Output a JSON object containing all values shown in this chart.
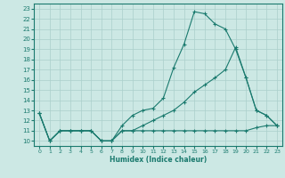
{
  "bg_color": "#cce8e4",
  "line_color": "#1a7a6e",
  "grid_color": "#aacfcb",
  "xlabel": "Humidex (Indice chaleur)",
  "xlim": [
    -0.5,
    23.5
  ],
  "ylim": [
    9.5,
    23.5
  ],
  "xticks": [
    0,
    1,
    2,
    3,
    4,
    5,
    6,
    7,
    8,
    9,
    10,
    11,
    12,
    13,
    14,
    15,
    16,
    17,
    18,
    19,
    20,
    21,
    22,
    23
  ],
  "yticks": [
    10,
    11,
    12,
    13,
    14,
    15,
    16,
    17,
    18,
    19,
    20,
    21,
    22,
    23
  ],
  "line1_x": [
    0,
    1,
    2,
    3,
    4,
    5,
    6,
    7,
    8,
    9,
    10,
    11,
    12,
    13,
    14,
    15,
    16,
    17,
    18,
    19,
    20,
    21,
    22,
    23
  ],
  "line1_y": [
    12.7,
    10.0,
    11.0,
    11.0,
    11.0,
    11.0,
    10.0,
    10.0,
    11.5,
    12.5,
    13.0,
    13.2,
    14.2,
    17.2,
    19.5,
    22.7,
    22.5,
    21.5,
    21.0,
    19.0,
    16.2,
    13.0,
    12.5,
    11.5
  ],
  "line2_x": [
    0,
    1,
    2,
    3,
    4,
    5,
    6,
    7,
    8,
    9,
    10,
    11,
    12,
    13,
    14,
    15,
    16,
    17,
    18,
    19,
    20,
    21,
    22,
    23
  ],
  "line2_y": [
    12.7,
    10.0,
    11.0,
    11.0,
    11.0,
    11.0,
    10.0,
    10.0,
    11.0,
    11.0,
    11.5,
    12.0,
    12.5,
    13.0,
    13.8,
    14.8,
    15.5,
    16.2,
    17.0,
    19.2,
    16.2,
    13.0,
    12.5,
    11.5
  ],
  "line3_x": [
    0,
    1,
    2,
    3,
    4,
    5,
    6,
    7,
    8,
    9,
    10,
    11,
    12,
    13,
    14,
    15,
    16,
    17,
    18,
    19,
    20,
    21,
    22,
    23
  ],
  "line3_y": [
    12.7,
    10.0,
    11.0,
    11.0,
    11.0,
    11.0,
    10.0,
    10.0,
    11.0,
    11.0,
    11.0,
    11.0,
    11.0,
    11.0,
    11.0,
    11.0,
    11.0,
    11.0,
    11.0,
    11.0,
    11.0,
    11.3,
    11.5,
    11.5
  ]
}
